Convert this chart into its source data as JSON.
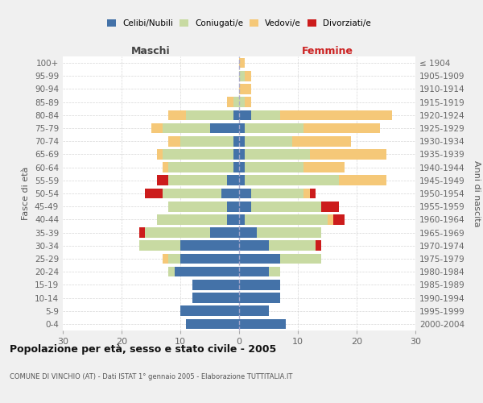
{
  "age_groups": [
    "0-4",
    "5-9",
    "10-14",
    "15-19",
    "20-24",
    "25-29",
    "30-34",
    "35-39",
    "40-44",
    "45-49",
    "50-54",
    "55-59",
    "60-64",
    "65-69",
    "70-74",
    "75-79",
    "80-84",
    "85-89",
    "90-94",
    "95-99",
    "100+"
  ],
  "birth_years": [
    "2000-2004",
    "1995-1999",
    "1990-1994",
    "1985-1989",
    "1980-1984",
    "1975-1979",
    "1970-1974",
    "1965-1969",
    "1960-1964",
    "1955-1959",
    "1950-1954",
    "1945-1949",
    "1940-1944",
    "1935-1939",
    "1930-1934",
    "1925-1929",
    "1920-1924",
    "1915-1919",
    "1910-1914",
    "1905-1909",
    "≤ 1904"
  ],
  "colors": {
    "celibi": "#4472a8",
    "coniugati": "#c8daa2",
    "vedovi": "#f5c878",
    "divorziati": "#cc1c1c"
  },
  "maschi": {
    "celibi": [
      9,
      10,
      8,
      8,
      11,
      10,
      10,
      5,
      2,
      2,
      3,
      2,
      1,
      1,
      1,
      5,
      1,
      0,
      0,
      0,
      0
    ],
    "coniugati": [
      0,
      0,
      0,
      0,
      1,
      2,
      7,
      11,
      12,
      10,
      10,
      10,
      11,
      12,
      9,
      8,
      8,
      1,
      0,
      0,
      0
    ],
    "vedovi": [
      0,
      0,
      0,
      0,
      0,
      1,
      0,
      0,
      0,
      0,
      0,
      0,
      1,
      1,
      2,
      2,
      3,
      1,
      0,
      0,
      0
    ],
    "divorziati": [
      0,
      0,
      0,
      0,
      0,
      0,
      0,
      1,
      0,
      0,
      3,
      2,
      0,
      0,
      0,
      0,
      0,
      0,
      0,
      0,
      0
    ]
  },
  "femmine": {
    "celibi": [
      8,
      5,
      7,
      7,
      5,
      7,
      5,
      3,
      1,
      2,
      2,
      1,
      1,
      1,
      1,
      1,
      2,
      0,
      0,
      0,
      0
    ],
    "coniugati": [
      0,
      0,
      0,
      0,
      2,
      7,
      8,
      11,
      14,
      12,
      9,
      16,
      10,
      11,
      8,
      10,
      5,
      1,
      0,
      1,
      0
    ],
    "vedovi": [
      0,
      0,
      0,
      0,
      0,
      0,
      0,
      0,
      1,
      0,
      1,
      8,
      7,
      13,
      10,
      13,
      19,
      1,
      2,
      1,
      1
    ],
    "divorziati": [
      0,
      0,
      0,
      0,
      0,
      0,
      1,
      0,
      2,
      3,
      1,
      0,
      0,
      0,
      0,
      0,
      0,
      0,
      0,
      0,
      0
    ]
  },
  "xlim": 30,
  "title": "Popolazione per età, sesso e stato civile - 2005",
  "subtitle": "COMUNE DI VINCHIO (AT) - Dati ISTAT 1° gennaio 2005 - Elaborazione TUTTITALIA.IT",
  "ylabel_left": "Fasce di età",
  "ylabel_right": "Anni di nascita",
  "label_maschi": "Maschi",
  "label_femmine": "Femmine",
  "legend_labels": [
    "Celibi/Nubili",
    "Coniugati/e",
    "Vedovi/e",
    "Divorziati/e"
  ],
  "bg_color": "#f0f0f0",
  "plot_bg_color": "#ffffff"
}
